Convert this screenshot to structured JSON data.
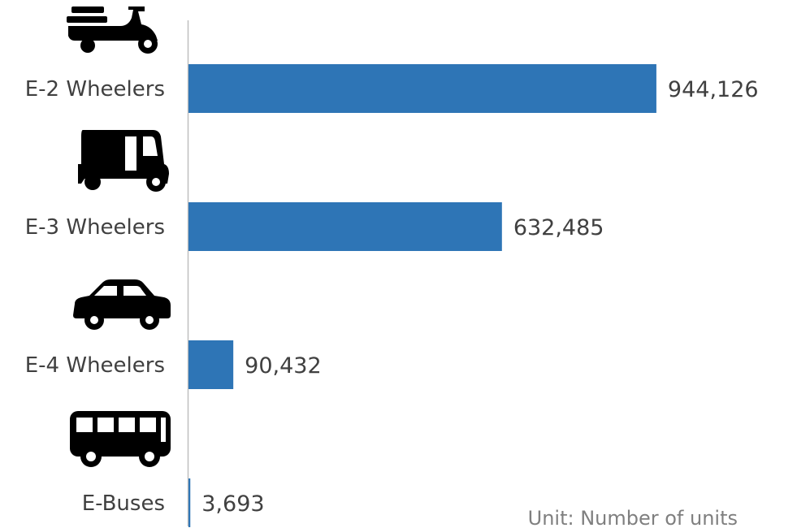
{
  "chart_data": {
    "type": "bar",
    "orientation": "horizontal",
    "categories": [
      "E-2 Wheelers",
      "E-3 Wheelers",
      "E-4 Wheelers",
      "E-Buses"
    ],
    "values": [
      944126,
      632485,
      90432,
      3693
    ],
    "value_labels": [
      "944,126",
      "632,485",
      "90,432",
      "3,693"
    ],
    "icons": [
      "scooter-icon",
      "auto-rickshaw-icon",
      "car-icon",
      "bus-icon"
    ],
    "xlim": [
      0,
      1000000
    ],
    "grid": false,
    "legend": "none",
    "colors": {
      "bar": "#2e75b6",
      "axis": "#bfbfbf",
      "icon": "#000000",
      "text": "#404040",
      "note": "#7f7f7f"
    }
  },
  "note": "Unit: Number of units"
}
